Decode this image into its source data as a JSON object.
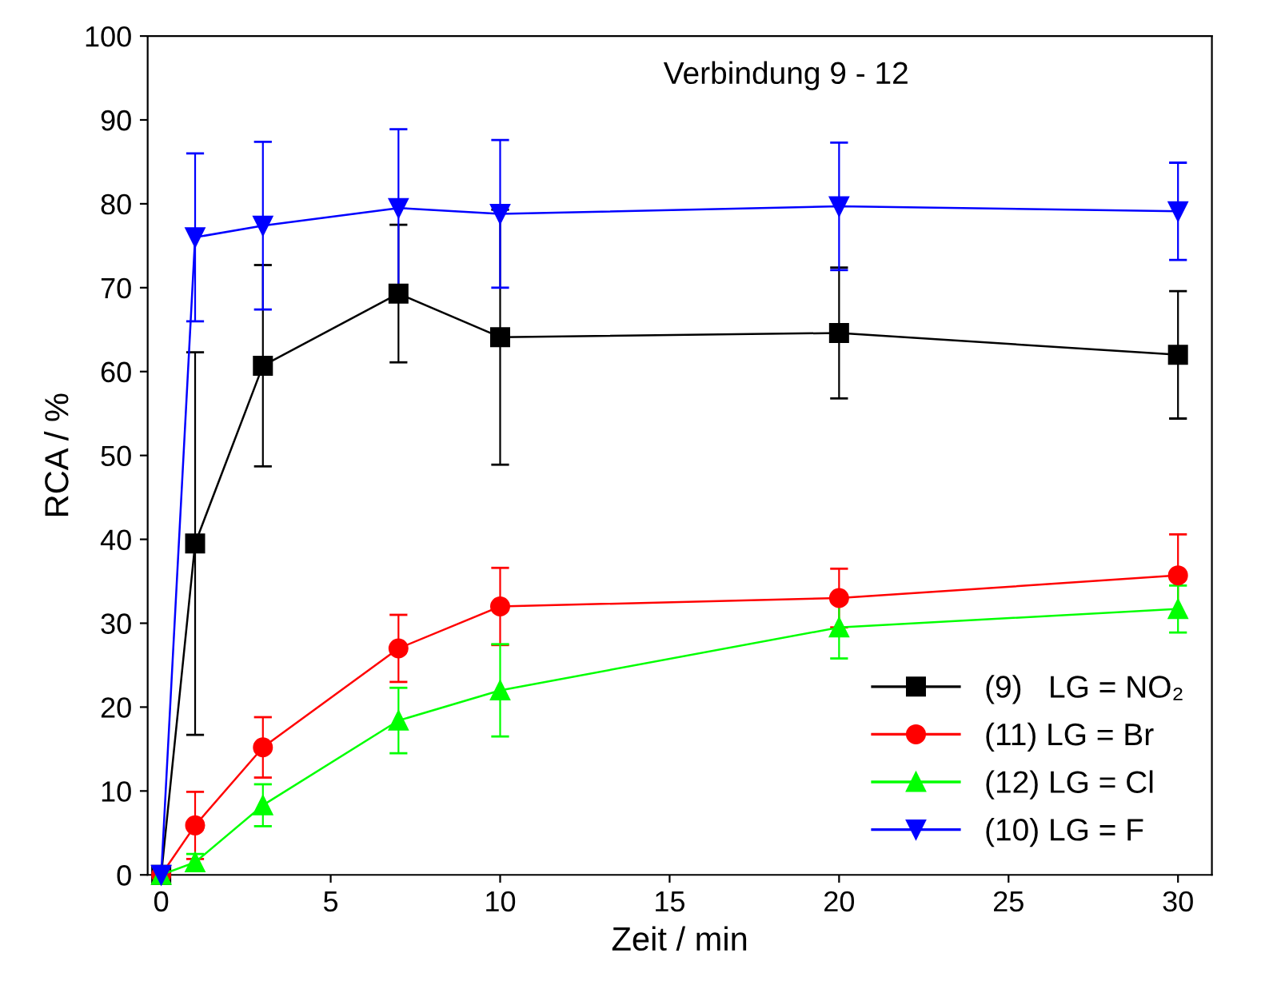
{
  "chart_data": {
    "type": "line",
    "title": "Verbindung 9 - 12",
    "xlabel": "Zeit / min",
    "ylabel": "RCA / %",
    "x": [
      0,
      1,
      3,
      7,
      10,
      20,
      30
    ],
    "series": [
      {
        "name": "(9)   LG = NO₂",
        "color": "#000000",
        "marker": "square",
        "values": [
          0,
          39.5,
          60.7,
          69.3,
          64.1,
          64.6,
          62.0
        ],
        "errors": [
          null,
          22.8,
          12,
          8.2,
          15.2,
          7.8,
          7.6
        ]
      },
      {
        "name": "(11) LG = Br",
        "color": "#ff0000",
        "marker": "circle",
        "values": [
          0,
          5.9,
          15.2,
          27.0,
          32.0,
          33.0,
          35.7
        ],
        "errors": [
          null,
          4,
          3.6,
          4,
          4.6,
          3.5,
          4.9
        ]
      },
      {
        "name": "(12) LG = Cl",
        "color": "#00ff00",
        "marker": "triangle",
        "values": [
          0,
          1.5,
          8.3,
          18.4,
          22.0,
          29.5,
          31.7
        ],
        "errors": [
          null,
          1,
          2.5,
          3.9,
          5.5,
          3.7,
          2.8
        ]
      },
      {
        "name": "(10) LG = F",
        "color": "#0000ff",
        "marker": "triangle-down",
        "values": [
          0,
          76.0,
          77.4,
          79.5,
          78.8,
          79.7,
          79.1
        ],
        "errors": [
          null,
          10,
          10,
          9.4,
          8.8,
          7.6,
          5.8
        ]
      }
    ],
    "xlim": [
      -0.4,
      31
    ],
    "ylim": [
      0,
      100
    ],
    "xticks": [
      0,
      5,
      10,
      15,
      20,
      25,
      30
    ],
    "yticks": [
      0,
      10,
      20,
      30,
      40,
      50,
      60,
      70,
      80,
      90,
      100
    ],
    "grid": false,
    "legend": "bottom right",
    "line_style": "solid"
  }
}
